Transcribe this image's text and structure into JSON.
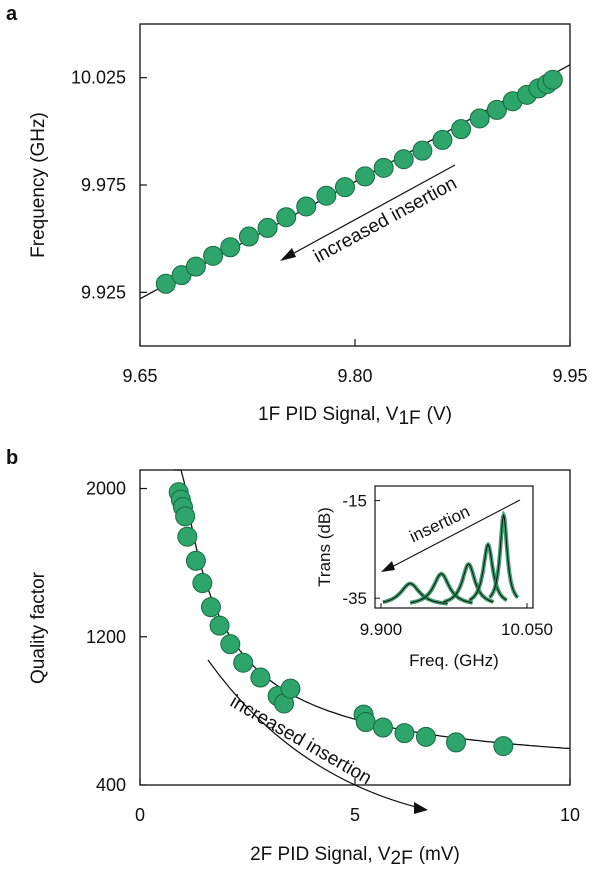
{
  "colors": {
    "marker_fill": "#2ea56a",
    "marker_edge": "#176b43",
    "line": "#111111",
    "inset_fit": "#1f8c55"
  },
  "chart_data": [
    {
      "panel": "a",
      "type": "scatter",
      "xlabel": "1F PID Signal, V",
      "xlabel_sub": "1F",
      "xlabel_unit": "(V)",
      "ylabel": "Frequency (GHz)",
      "xlim": [
        9.65,
        9.95
      ],
      "ylim": [
        9.9,
        10.05
      ],
      "xticks": [
        "9.65",
        "9.80",
        "9.95"
      ],
      "xtick_values": [
        9.65,
        9.8,
        9.95
      ],
      "yticks": [
        "9.925",
        "9.975",
        "10.025"
      ],
      "ytick_values": [
        9.925,
        9.975,
        10.025
      ],
      "annotation": "increased insertion",
      "fit_line": {
        "x": [
          9.65,
          9.95
        ],
        "y": [
          9.922,
          10.031
        ]
      },
      "x": [
        9.668,
        9.679,
        9.689,
        9.701,
        9.713,
        9.726,
        9.739,
        9.752,
        9.766,
        9.78,
        9.793,
        9.807,
        9.82,
        9.834,
        9.847,
        9.861,
        9.874,
        9.887,
        9.899,
        9.91,
        9.92,
        9.928,
        9.934,
        9.938
      ],
      "y": [
        9.929,
        9.933,
        9.937,
        9.942,
        9.946,
        9.951,
        9.955,
        9.96,
        9.965,
        9.97,
        9.974,
        9.979,
        9.983,
        9.987,
        9.991,
        9.996,
        10.001,
        10.006,
        10.01,
        10.014,
        10.017,
        10.02,
        10.022,
        10.024
      ]
    },
    {
      "panel": "b",
      "type": "scatter",
      "xlabel": "2F PID Signal, V",
      "xlabel_sub": "2F",
      "xlabel_unit": "(mV)",
      "ylabel": "Quality factor",
      "xlim": [
        0,
        10
      ],
      "ylim": [
        400,
        2100
      ],
      "xticks": [
        "0",
        "5",
        "10"
      ],
      "xtick_values": [
        0,
        5,
        10
      ],
      "yticks": [
        "400",
        "1200",
        "2000"
      ],
      "ytick_values": [
        400,
        1200,
        2000
      ],
      "annotation": "increased insertion",
      "x": [
        0.9,
        0.95,
        1.0,
        1.05,
        1.1,
        1.3,
        1.45,
        1.65,
        1.85,
        2.1,
        2.4,
        2.8,
        3.2,
        3.35,
        3.5,
        5.2,
        5.25,
        5.65,
        6.15,
        6.65,
        7.35,
        8.45
      ],
      "y": [
        1980,
        1940,
        1900,
        1850,
        1740,
        1610,
        1490,
        1360,
        1260,
        1160,
        1060,
        980,
        880,
        840,
        920,
        780,
        740,
        710,
        680,
        660,
        630,
        610
      ]
    },
    {
      "panel": "b-inset",
      "type": "line",
      "xlabel": "Freq. (GHz)",
      "ylabel": "Trans (dB)",
      "annotation": "insertion",
      "xlim": [
        9.9,
        10.05
      ],
      "ylim": [
        -37,
        -12
      ],
      "xticks": [
        "9.900",
        "10.050"
      ],
      "xtick_values": [
        9.9,
        10.05
      ],
      "yticks": [
        "-15",
        "-35"
      ],
      "ytick_values": [
        -15,
        -35
      ],
      "series": [
        {
          "center": 9.93,
          "peak": -32.0,
          "width": 0.012
        },
        {
          "center": 9.962,
          "peak": -30.0,
          "width": 0.01
        },
        {
          "center": 9.99,
          "peak": -28.0,
          "width": 0.008
        },
        {
          "center": 10.01,
          "peak": -24.0,
          "width": 0.006
        },
        {
          "center": 10.026,
          "peak": -18.0,
          "width": 0.0045
        }
      ]
    }
  ]
}
